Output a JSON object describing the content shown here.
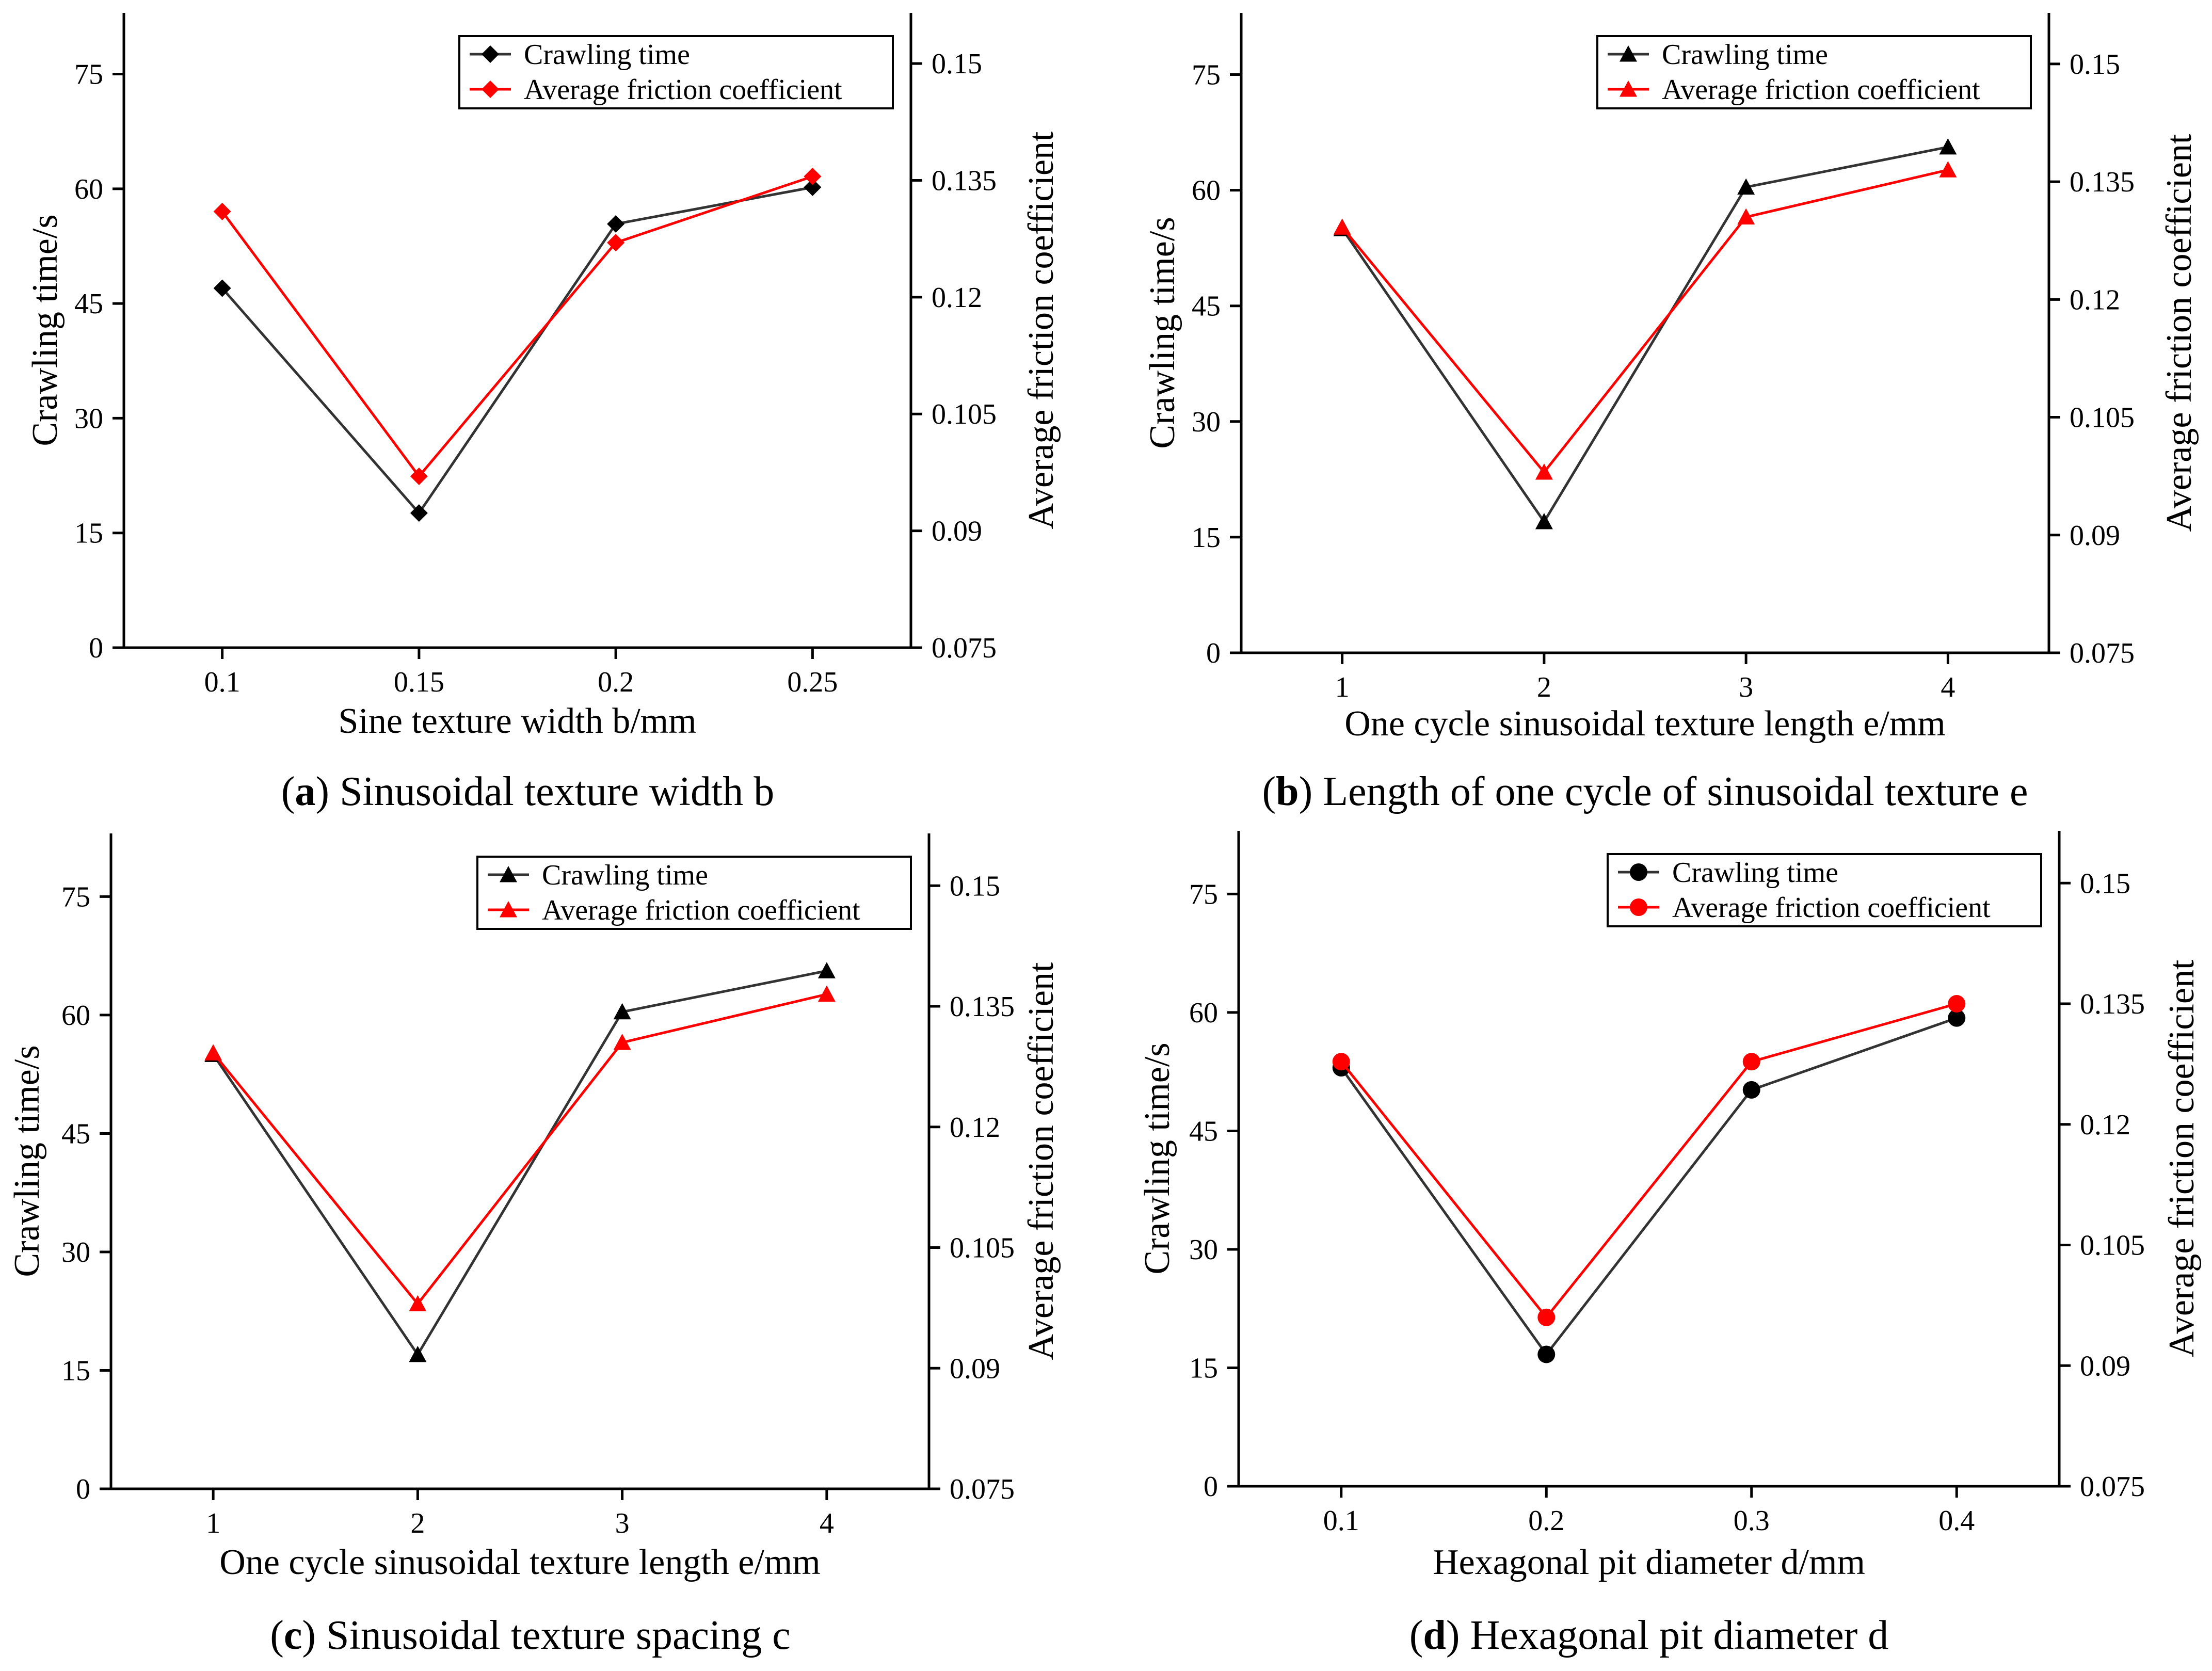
{
  "colors": {
    "primary": "#333333",
    "secondary": "#ff0000",
    "axis": "#000000"
  },
  "chart_data": [
    {
      "id": "a",
      "type": "line",
      "caption_letter": "a",
      "caption_text": "Sinusoidal texture width b",
      "xlabel": "Sine texture width b/mm",
      "ylabel": "Crawling time/s",
      "y2label": "Average friction coefficient",
      "categories": [
        "0.1",
        "0.15",
        "0.2",
        "0.25"
      ],
      "ylim": [
        0,
        83
      ],
      "yticks": [
        "0",
        "15",
        "30",
        "45",
        "60",
        "75"
      ],
      "y2lim": [
        0.075,
        0.1565
      ],
      "y2ticks": [
        "0.075",
        "0.09",
        "0.105",
        "0.12",
        "0.135",
        "0.15"
      ],
      "marker": "diamond",
      "legend_position": "top-right",
      "series": [
        {
          "name": "Crawling time",
          "axis": "left",
          "values": [
            47,
            17.6,
            55.4,
            60.2
          ]
        },
        {
          "name": "Average friction coefficient",
          "axis": "right",
          "values": [
            0.131,
            0.097,
            0.127,
            0.1355
          ]
        }
      ]
    },
    {
      "id": "b",
      "type": "line",
      "caption_letter": "b",
      "caption_text": "Length of one cycle of sinusoidal texture e",
      "xlabel": "One cycle sinusoidal texture length e/mm",
      "ylabel": "Crawling time/s",
      "y2label": "Average friction coefficient",
      "categories": [
        "1",
        "2",
        "3",
        "4"
      ],
      "ylim": [
        0,
        83
      ],
      "yticks": [
        "0",
        "15",
        "30",
        "45",
        "60",
        "75"
      ],
      "y2lim": [
        0.075,
        0.1565
      ],
      "y2ticks": [
        "0.075",
        "0.09",
        "0.105",
        "0.12",
        "0.135",
        "0.15"
      ],
      "marker": "triangle",
      "legend_position": "top-right",
      "series": [
        {
          "name": "Crawling time",
          "axis": "left",
          "values": [
            55,
            17,
            60.4,
            65.6
          ]
        },
        {
          "name": "Average friction coefficient",
          "axis": "right",
          "values": [
            0.1292,
            0.098,
            0.1305,
            0.1365
          ]
        }
      ]
    },
    {
      "id": "c",
      "type": "line",
      "caption_letter": "c",
      "caption_text": "Sinusoidal texture spacing c",
      "xlabel": "One cycle sinusoidal texture length e/mm",
      "ylabel": "Crawling time/s",
      "y2label": "Average friction coefficient",
      "categories": [
        "1",
        "2",
        "3",
        "4"
      ],
      "ylim": [
        0,
        83
      ],
      "yticks": [
        "0",
        "15",
        "30",
        "45",
        "60",
        "75"
      ],
      "y2lim": [
        0.075,
        0.1565
      ],
      "y2ticks": [
        "0.075",
        "0.09",
        "0.105",
        "0.12",
        "0.135",
        "0.15"
      ],
      "marker": "triangle",
      "legend_position": "top-right",
      "series": [
        {
          "name": "Crawling time",
          "axis": "left",
          "values": [
            55,
            17,
            60.4,
            65.6
          ]
        },
        {
          "name": "Average friction coefficient",
          "axis": "right",
          "values": [
            0.1292,
            0.098,
            0.1305,
            0.1365
          ]
        }
      ]
    },
    {
      "id": "d",
      "type": "line",
      "caption_letter": "d",
      "caption_text": "Hexagonal pit diameter d",
      "xlabel": "Hexagonal pit diameter d/mm",
      "ylabel": "Crawling time/s",
      "y2label": "Average friction coefficient",
      "categories": [
        "0.1",
        "0.2",
        "0.3",
        "0.4"
      ],
      "ylim": [
        0,
        83
      ],
      "yticks": [
        "0",
        "15",
        "30",
        "45",
        "60",
        "75"
      ],
      "y2lim": [
        0.075,
        0.1565
      ],
      "y2ticks": [
        "0.075",
        "0.09",
        "0.105",
        "0.12",
        "0.135",
        "0.15"
      ],
      "marker": "circle",
      "legend_position": "top-right",
      "series": [
        {
          "name": "Crawling time",
          "axis": "left",
          "values": [
            53,
            16.7,
            50.2,
            59.3
          ]
        },
        {
          "name": "Average friction coefficient",
          "axis": "right",
          "values": [
            0.1278,
            0.096,
            0.1278,
            0.135
          ]
        }
      ]
    }
  ]
}
